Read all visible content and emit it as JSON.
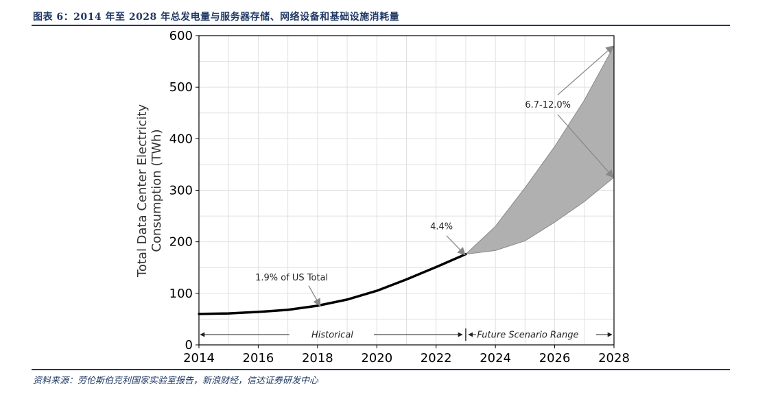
{
  "header": {
    "title": "图表 6：2014 年至 2028 年总发电量与服务器存储、网络设备和基础设施消耗量"
  },
  "footer": {
    "source": "资料来源：劳伦斯伯克利国家实验室报告，新浪财经，信达证券研发中心"
  },
  "chart_data": {
    "type": "area",
    "title": "",
    "xlabel": "",
    "ylabel": "Total Data Center Electricity Consumption (TWh)",
    "ylabel_lines": [
      "Total Data Center Electricity",
      "Consumption (TWh)"
    ],
    "xlim": [
      2014,
      2028
    ],
    "ylim": [
      0,
      600
    ],
    "xticks": [
      2014,
      2016,
      2018,
      2020,
      2022,
      2024,
      2026,
      2028
    ],
    "yticks": [
      0,
      100,
      200,
      300,
      400,
      500,
      600
    ],
    "grid": true,
    "series": [
      {
        "name": "Historical",
        "x": [
          2014,
          2015,
          2016,
          2017,
          2018,
          2019,
          2020,
          2021,
          2022,
          2023
        ],
        "values": [
          60,
          61,
          64,
          68,
          76,
          88,
          105,
          127,
          151,
          176
        ]
      },
      {
        "name": "Future Scenario Range - high",
        "x": [
          2023,
          2024,
          2025,
          2026,
          2027,
          2028
        ],
        "values": [
          176,
          230,
          305,
          385,
          475,
          580
        ]
      },
      {
        "name": "Future Scenario Range - low",
        "x": [
          2023,
          2024,
          2025,
          2026,
          2027,
          2028
        ],
        "values": [
          176,
          183,
          202,
          238,
          278,
          325
        ]
      }
    ],
    "annotations": [
      {
        "text": "1.9% of US Total",
        "x": 2018,
        "y": 78
      },
      {
        "text": "4.4%",
        "x": 2023,
        "y": 176
      },
      {
        "text": "6.7-12.0%",
        "x": 2028,
        "y": 580
      },
      {
        "text": "6.7-12.0%",
        "x": 2028,
        "y": 325
      }
    ],
    "ranges": [
      {
        "label": "Historical",
        "from": 2014,
        "to": 2023
      },
      {
        "label": "Future Scenario Range",
        "from": 2023,
        "to": 2028
      }
    ],
    "colors": {
      "historical": "#000000",
      "band_fill": "#b0b0b0",
      "band_edge": "#888888",
      "grid": "#e0e0e0"
    }
  }
}
